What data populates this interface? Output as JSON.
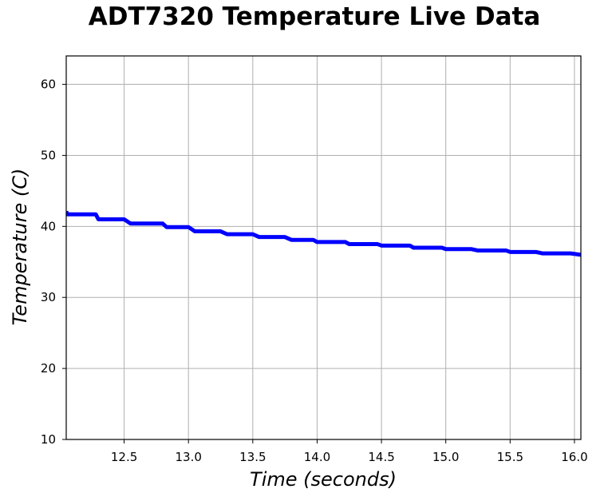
{
  "chart_data": {
    "type": "line",
    "title": "ADT7320 Temperature Live Data",
    "xlabel": "Time (seconds)",
    "ylabel": "Temperature (C)",
    "xlim": [
      12.05,
      16.05
    ],
    "ylim": [
      10,
      64
    ],
    "xticks": [
      12.5,
      13.0,
      13.5,
      14.0,
      14.5,
      15.0,
      15.5,
      16.0
    ],
    "xtick_labels": [
      "12.5",
      "13.0",
      "13.5",
      "14.0",
      "14.5",
      "15.0",
      "15.5",
      "16.0"
    ],
    "yticks": [
      10,
      20,
      30,
      40,
      50,
      60
    ],
    "ytick_labels": [
      "10",
      "20",
      "30",
      "40",
      "50",
      "60"
    ],
    "grid": true,
    "series": [
      {
        "color": "#0000ff",
        "x": [
          12.05,
          12.06,
          12.28,
          12.3,
          12.5,
          12.55,
          12.8,
          12.83,
          13.0,
          13.05,
          13.25,
          13.3,
          13.5,
          13.55,
          13.75,
          13.8,
          13.97,
          14.0,
          14.22,
          14.25,
          14.47,
          14.5,
          14.72,
          14.75,
          14.97,
          15.0,
          15.2,
          15.25,
          15.47,
          15.5,
          15.7,
          15.75,
          15.97,
          16.05
        ],
        "y": [
          42.1,
          41.7,
          41.7,
          41.0,
          41.0,
          40.4,
          40.4,
          39.9,
          39.9,
          39.3,
          39.3,
          38.9,
          38.9,
          38.5,
          38.5,
          38.1,
          38.1,
          37.8,
          37.8,
          37.5,
          37.5,
          37.3,
          37.3,
          37.0,
          37.0,
          36.8,
          36.8,
          36.6,
          36.6,
          36.4,
          36.4,
          36.2,
          36.2,
          36.0
        ]
      }
    ]
  }
}
